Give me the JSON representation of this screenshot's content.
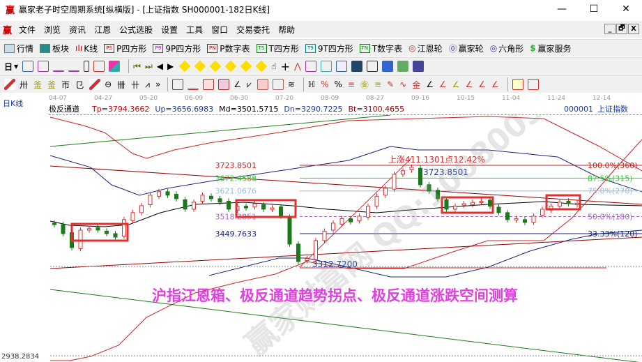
{
  "window": {
    "logo": "赢",
    "title": "赢家老子时空周期系统[纵横版] - [上证指数  SH000001-182日K线]",
    "minimize": "—",
    "maximize": "☐",
    "close": "✕"
  },
  "menu": [
    "文件",
    "浏览",
    "资讯",
    "江恩",
    "公式选股",
    "设置",
    "工具",
    "窗口",
    "交易委托",
    "帮助"
  ],
  "mdi_buttons": [
    "_",
    "🗗",
    "X"
  ],
  "toolbar1": [
    {
      "icon": "grid-icon",
      "label": "行情"
    },
    {
      "icon": "blocks-icon",
      "label": "板块"
    },
    {
      "icon": "candles-icon",
      "label": "K线"
    },
    {
      "icon": "PS",
      "label": "P四方形"
    },
    {
      "icon": "P9",
      "label": "9P四方形"
    },
    {
      "icon": "PN",
      "label": "P数字表"
    },
    {
      "icon": "TS",
      "label": "T四方形"
    },
    {
      "icon": "T9",
      "label": "9T四方形"
    },
    {
      "icon": "TN",
      "label": "T数字表"
    },
    {
      "icon": "◎",
      "label": "江恩轮"
    },
    {
      "icon": "Big",
      "label": "赢家轮"
    },
    {
      "icon": "◎",
      "label": "六角形"
    },
    {
      "icon": "$",
      "label": "赢家服务"
    }
  ],
  "toolbar2": {
    "period": "日"
  },
  "date_ticks": [
    "04-07",
    "04-27",
    "05-20",
    "06-09",
    "06-30",
    "07-20",
    "08-09",
    "08-27",
    "09-16",
    "10-15",
    "11-04",
    "11-24",
    "12-14"
  ],
  "chart_label": "日K线",
  "indicator": {
    "name": "极反通道",
    "tp": "Tp=3794.3662",
    "up": "Up=3656.6983",
    "md": "Md=3501.5715",
    "dn": "Dn=3290.7225",
    "bt": "Bt=3100.4655",
    "code": "000001",
    "stock": "上证指数"
  },
  "colors": {
    "up": "#e03030",
    "down": "#1a7a1a",
    "accent": "#e040e0",
    "box": "#e03030"
  },
  "chart_data": {
    "type": "candlestick",
    "closes": [
      3486,
      3450,
      3394,
      3464,
      3470,
      3464,
      3450,
      3436,
      3506,
      3534,
      3562,
      3604,
      3618,
      3604,
      3590,
      3548,
      3576,
      3604,
      3590,
      3576,
      3548,
      3560,
      3553,
      3570,
      3548,
      3553,
      3520,
      3408,
      3338,
      3350,
      3422,
      3460,
      3492,
      3510,
      3497,
      3520,
      3560,
      3600,
      3632,
      3688,
      3702,
      3716,
      3646,
      3620,
      3590,
      3548,
      3560,
      3570,
      3575,
      3580,
      3560,
      3534,
      3506,
      3510,
      3495,
      3520,
      3548,
      3560,
      3576,
      3570,
      3572
    ],
    "levels": [
      {
        "price": "3723.8501",
        "pct": "100.0%(360)"
      },
      {
        "price": "3672.4588",
        "pct": "87.5%(315)"
      },
      {
        "price": "3621.0676",
        "pct": "75.0%(270)"
      },
      {
        "price": "3518.2851",
        "pct": "50.0%(180)"
      },
      {
        "price": "3449.7633",
        "pct": "33.33%(120)"
      }
    ],
    "low_mark": "3312.7200",
    "high_mark": "3723.8501",
    "rise_label": "上涨411.1301点12.42%",
    "bottom_value": "2938.2834"
  },
  "caption": "沪指江恩箱、极反通道趋势拐点、极反通道涨跌空间测算",
  "watermark": "赢家财富网 QQ:100800360"
}
